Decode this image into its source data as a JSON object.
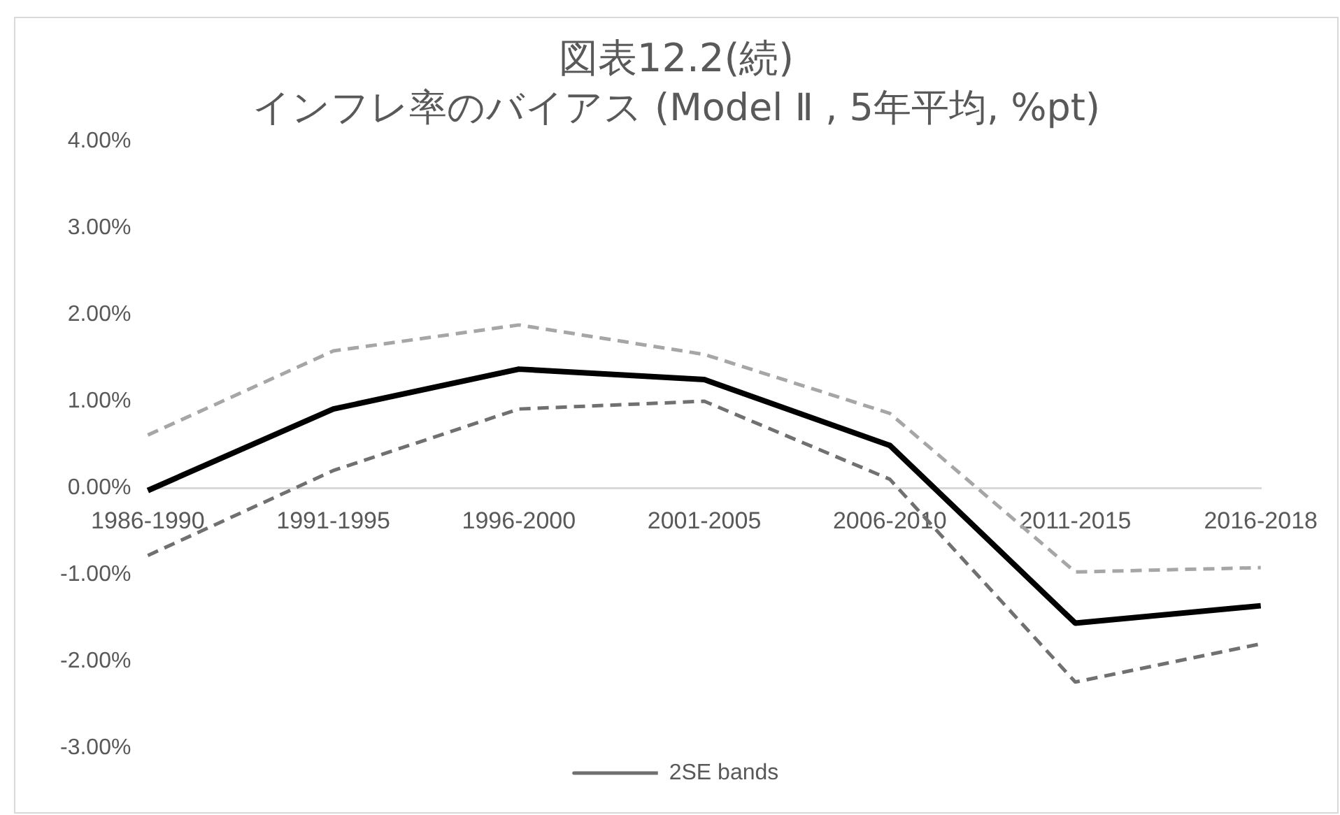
{
  "chart_data": {
    "type": "line",
    "title": "図表12.2(続)",
    "subtitle": "インフレ率のバイアス (Model Ⅱ , 5年平均, %pt)",
    "categories": [
      "1986-1990",
      "1991-1995",
      "1996-2000",
      "2001-2005",
      "2006-2010",
      "2011-2015",
      "2016-2018"
    ],
    "series": [
      {
        "color": "#000000",
        "values": [
          -0.03,
          0.91,
          1.37,
          1.25,
          0.49,
          -1.56,
          -1.36
        ],
        "line_style": "solid"
      },
      {
        "color": "#a6a6a6",
        "values": [
          0.61,
          1.58,
          1.88,
          1.54,
          0.86,
          -0.97,
          -0.92
        ],
        "line_style": "dashed"
      },
      {
        "name": "2SE bands",
        "color": "#707070",
        "values": [
          -0.78,
          0.2,
          0.91,
          1.0,
          0.1,
          -2.24,
          -1.8
        ],
        "line_style": "dashed"
      }
    ],
    "ylim": [
      -3,
      4
    ],
    "yticks": [
      {
        "value": -3,
        "label": "-3.00%"
      },
      {
        "value": -2,
        "label": "-2.00%"
      },
      {
        "value": -1,
        "label": "-1.00%"
      },
      {
        "value": 0,
        "label": "0.00%"
      },
      {
        "value": 1,
        "label": "1.00%"
      },
      {
        "value": 2,
        "label": "2.00%"
      },
      {
        "value": 3,
        "label": "3.00%"
      },
      {
        "value": 4,
        "label": "4.00%"
      }
    ],
    "grid": false,
    "legend": "bottom",
    "marker": "none"
  }
}
